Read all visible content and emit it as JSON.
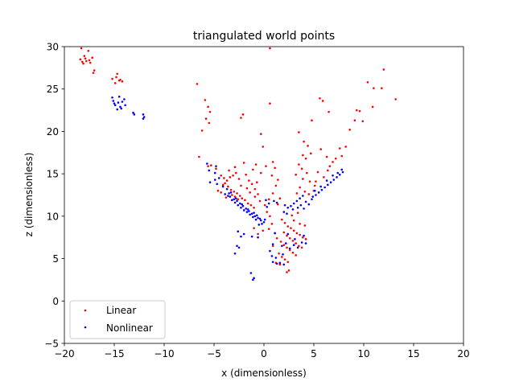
{
  "chart_data": {
    "type": "scatter",
    "title": "triangulated world points",
    "xlabel": "x (dimensionless)",
    "ylabel": "z (dimensionless)",
    "xlim": [
      -20,
      20
    ],
    "ylim": [
      -5,
      30
    ],
    "xticks": [
      -20,
      -15,
      -10,
      -5,
      0,
      5,
      10,
      15,
      20
    ],
    "yticks": [
      -5,
      0,
      5,
      10,
      15,
      20,
      25,
      30
    ],
    "xtick_labels": [
      "−20",
      "−15",
      "−10",
      "−5",
      "0",
      "5",
      "10",
      "15",
      "20"
    ],
    "ytick_labels": [
      "−5",
      "0",
      "5",
      "10",
      "15",
      "20",
      "25",
      "30"
    ],
    "grid": false,
    "legend_position": "lower-left",
    "series": [
      {
        "name": "Linear",
        "color": "#ff0000",
        "points": [
          [
            -18.3,
            29.8
          ],
          [
            -17.6,
            29.5
          ],
          [
            -18.0,
            28.9
          ],
          [
            -17.2,
            28.7
          ],
          [
            -18.4,
            28.5
          ],
          [
            -17.8,
            28.3
          ],
          [
            -18.1,
            28.0
          ],
          [
            -17.4,
            28.1
          ],
          [
            -17.9,
            28.6
          ],
          [
            -17.0,
            27.2
          ],
          [
            -17.1,
            26.9
          ],
          [
            -18.2,
            28.2
          ],
          [
            -17.5,
            28.4
          ],
          [
            -14.7,
            26.8
          ],
          [
            -14.8,
            26.4
          ],
          [
            -14.5,
            26.0
          ],
          [
            -14.2,
            25.9
          ],
          [
            -14.9,
            25.7
          ],
          [
            -15.2,
            26.2
          ],
          [
            -14.4,
            26.1
          ],
          [
            -6.7,
            25.6
          ],
          [
            -5.9,
            23.7
          ],
          [
            -5.6,
            22.9
          ],
          [
            -5.4,
            22.3
          ],
          [
            -5.8,
            21.5
          ],
          [
            -5.5,
            21.0
          ],
          [
            -6.2,
            20.1
          ],
          [
            -6.5,
            17.0
          ],
          [
            -2.3,
            21.6
          ],
          [
            -2.1,
            22.0
          ],
          [
            0.6,
            29.8
          ],
          [
            0.6,
            23.3
          ],
          [
            -0.3,
            19.7
          ],
          [
            -0.1,
            18.2
          ],
          [
            -5.3,
            16.0
          ],
          [
            -5.6,
            15.9
          ],
          [
            -4.8,
            15.6
          ],
          [
            -4.3,
            14.8
          ],
          [
            -4.0,
            14.5
          ],
          [
            -3.7,
            14.2
          ],
          [
            -3.4,
            14.6
          ],
          [
            -3.1,
            14.8
          ],
          [
            -2.8,
            15.1
          ],
          [
            -2.5,
            14.4
          ],
          [
            -3.9,
            13.9
          ],
          [
            -4.1,
            13.7
          ],
          [
            -3.6,
            13.5
          ],
          [
            -3.3,
            13.1
          ],
          [
            -3.0,
            12.9
          ],
          [
            -2.7,
            12.7
          ],
          [
            -2.4,
            12.4
          ],
          [
            -2.2,
            12.1
          ],
          [
            -1.9,
            11.9
          ],
          [
            -1.6,
            11.5
          ],
          [
            -1.3,
            11.3
          ],
          [
            -1.0,
            11.0
          ],
          [
            -2.9,
            12.3
          ],
          [
            -2.6,
            12.0
          ],
          [
            -3.2,
            12.5
          ],
          [
            -1.8,
            14.9
          ],
          [
            -1.5,
            14.2
          ],
          [
            -1.2,
            13.8
          ],
          [
            -0.9,
            13.2
          ],
          [
            -0.6,
            12.6
          ],
          [
            -0.3,
            15.1
          ],
          [
            0.2,
            15.9
          ],
          [
            -0.8,
            16.1
          ],
          [
            -1.1,
            15.5
          ],
          [
            -2.0,
            16.3
          ],
          [
            -2.9,
            15.8
          ],
          [
            -4.6,
            13.0
          ],
          [
            -4.3,
            12.8
          ],
          [
            -3.8,
            12.2
          ],
          [
            -1.4,
            12.8
          ],
          [
            -0.9,
            12.3
          ],
          [
            -0.4,
            11.8
          ],
          [
            0.1,
            11.3
          ],
          [
            0.5,
            12.0
          ],
          [
            -2.3,
            13.6
          ],
          [
            -1.7,
            13.3
          ],
          [
            -3.5,
            15.4
          ],
          [
            -0.7,
            14.0
          ],
          [
            0.9,
            16.4
          ],
          [
            1.1,
            15.7
          ],
          [
            0.8,
            14.8
          ],
          [
            1.4,
            14.3
          ],
          [
            1.2,
            13.6
          ],
          [
            0.9,
            12.7
          ],
          [
            1.6,
            12.1
          ],
          [
            1.4,
            11.4
          ],
          [
            3.5,
            19.9
          ],
          [
            4.0,
            18.8
          ],
          [
            4.4,
            18.3
          ],
          [
            3.9,
            17.2
          ],
          [
            4.7,
            17.4
          ],
          [
            4.2,
            16.8
          ],
          [
            3.5,
            16.1
          ],
          [
            3.8,
            15.6
          ],
          [
            4.3,
            15.1
          ],
          [
            3.2,
            14.9
          ],
          [
            3.9,
            14.4
          ],
          [
            4.6,
            14.1
          ],
          [
            5.1,
            13.6
          ],
          [
            3.6,
            13.4
          ],
          [
            4.1,
            12.9
          ],
          [
            4.5,
            12.6
          ],
          [
            5.0,
            13.0
          ],
          [
            3.3,
            12.7
          ],
          [
            4.8,
            21.3
          ],
          [
            5.6,
            23.9
          ],
          [
            5.9,
            23.6
          ],
          [
            6.5,
            22.3
          ],
          [
            5.7,
            17.9
          ],
          [
            6.3,
            17.0
          ],
          [
            6.9,
            16.4
          ],
          [
            7.2,
            16.8
          ],
          [
            6.6,
            15.9
          ],
          [
            7.6,
            18.0
          ],
          [
            7.8,
            17.1
          ],
          [
            8.2,
            18.2
          ],
          [
            8.6,
            20.2
          ],
          [
            9.1,
            21.3
          ],
          [
            9.3,
            22.5
          ],
          [
            9.6,
            22.4
          ],
          [
            9.9,
            21.2
          ],
          [
            10.4,
            25.8
          ],
          [
            10.9,
            22.9
          ],
          [
            11.0,
            25.1
          ],
          [
            12.0,
            27.3
          ],
          [
            11.8,
            25.1
          ],
          [
            13.2,
            23.8
          ],
          [
            5.4,
            15.2
          ],
          [
            6.0,
            14.6
          ],
          [
            5.2,
            14.1
          ],
          [
            6.4,
            15.4
          ],
          [
            1.8,
            9.6
          ],
          [
            2.1,
            9.2
          ],
          [
            2.4,
            8.8
          ],
          [
            2.7,
            8.6
          ],
          [
            3.0,
            8.3
          ],
          [
            3.3,
            8.0
          ],
          [
            3.6,
            7.8
          ],
          [
            3.9,
            7.5
          ],
          [
            4.2,
            7.3
          ],
          [
            2.0,
            8.1
          ],
          [
            2.3,
            7.7
          ],
          [
            2.6,
            7.4
          ],
          [
            2.9,
            7.1
          ],
          [
            3.2,
            6.8
          ],
          [
            3.5,
            6.5
          ],
          [
            3.8,
            6.3
          ],
          [
            1.7,
            7.0
          ],
          [
            2.0,
            6.6
          ],
          [
            2.3,
            6.3
          ],
          [
            2.6,
            6.0
          ],
          [
            2.9,
            5.7
          ],
          [
            3.2,
            5.4
          ],
          [
            1.5,
            5.6
          ],
          [
            1.8,
            5.2
          ],
          [
            2.1,
            4.9
          ],
          [
            2.4,
            4.6
          ],
          [
            1.2,
            4.5
          ],
          [
            1.6,
            4.3
          ],
          [
            2.5,
            3.6
          ],
          [
            2.3,
            3.4
          ],
          [
            0.5,
            8.5
          ],
          [
            0.8,
            9.1
          ],
          [
            1.1,
            8.0
          ],
          [
            0.3,
            10.5
          ],
          [
            0.6,
            10.0
          ],
          [
            3.0,
            9.5
          ],
          [
            3.6,
            9.1
          ],
          [
            4.1,
            8.9
          ],
          [
            0.9,
            6.5
          ],
          [
            1.3,
            7.4
          ],
          [
            2.8,
            10.1
          ],
          [
            3.4,
            10.4
          ],
          [
            -0.1,
            8.3
          ],
          [
            -1.0,
            8.6
          ],
          [
            -0.6,
            7.9
          ]
        ]
      },
      {
        "name": "Nonlinear",
        "color": "#0000ff",
        "points": [
          [
            -15.2,
            24.0
          ],
          [
            -15.1,
            23.6
          ],
          [
            -14.6,
            23.4
          ],
          [
            -14.9,
            23.1
          ],
          [
            -14.4,
            22.9
          ],
          [
            -14.7,
            22.6
          ],
          [
            -14.2,
            23.5
          ],
          [
            -14.0,
            23.8
          ],
          [
            -14.5,
            24.1
          ],
          [
            -13.9,
            23.1
          ],
          [
            -15.0,
            23.3
          ],
          [
            -14.3,
            22.7
          ],
          [
            -13.1,
            22.2
          ],
          [
            -13.0,
            22.0
          ],
          [
            -12.1,
            22.0
          ],
          [
            -12.0,
            21.7
          ],
          [
            -12.1,
            21.5
          ],
          [
            -5.5,
            15.4
          ],
          [
            -4.9,
            15.1
          ],
          [
            -4.5,
            14.5
          ],
          [
            -4.9,
            14.3
          ],
          [
            -5.4,
            14.0
          ],
          [
            -4.7,
            13.8
          ],
          [
            -4.1,
            13.5
          ],
          [
            -3.7,
            13.2
          ],
          [
            -3.3,
            12.8
          ],
          [
            -3.9,
            12.6
          ],
          [
            -3.4,
            12.3
          ],
          [
            -3.0,
            12.0
          ],
          [
            -2.7,
            11.8
          ],
          [
            -2.4,
            11.5
          ],
          [
            -2.1,
            11.2
          ],
          [
            -1.8,
            10.9
          ],
          [
            -1.5,
            10.6
          ],
          [
            -1.2,
            10.3
          ],
          [
            -0.9,
            10.0
          ],
          [
            -0.6,
            9.8
          ],
          [
            -0.3,
            9.5
          ],
          [
            0.0,
            9.3
          ],
          [
            -0.5,
            9.0
          ],
          [
            -0.8,
            9.6
          ],
          [
            -1.1,
            9.9
          ],
          [
            -1.4,
            10.2
          ],
          [
            -2.0,
            10.7
          ],
          [
            -2.6,
            11.3
          ],
          [
            -3.2,
            11.9
          ],
          [
            -3.6,
            12.4
          ],
          [
            -2.9,
            11.6
          ],
          [
            -2.3,
            11.0
          ],
          [
            -1.7,
            10.5
          ],
          [
            -0.2,
            9.1
          ],
          [
            0.1,
            9.6
          ],
          [
            -0.4,
            9.7
          ],
          [
            -1.0,
            10.4
          ],
          [
            -1.6,
            10.8
          ],
          [
            -2.2,
            11.4
          ],
          [
            -2.8,
            12.1
          ],
          [
            -3.5,
            12.7
          ],
          [
            -0.7,
            10.1
          ],
          [
            0.2,
            11.9
          ],
          [
            0.5,
            11.5
          ],
          [
            0.3,
            11.1
          ],
          [
            1.0,
            11.8
          ],
          [
            1.3,
            11.6
          ],
          [
            2.1,
            11.3
          ],
          [
            2.4,
            11.0
          ],
          [
            2.7,
            11.2
          ],
          [
            3.0,
            11.5
          ],
          [
            3.3,
            11.8
          ],
          [
            3.6,
            12.1
          ],
          [
            3.9,
            12.4
          ],
          [
            4.2,
            11.7
          ],
          [
            4.5,
            11.4
          ],
          [
            3.4,
            11.0
          ],
          [
            2.9,
            10.8
          ],
          [
            3.7,
            11.3
          ],
          [
            2.0,
            10.5
          ],
          [
            2.3,
            10.3
          ],
          [
            4.0,
            10.9
          ],
          [
            4.8,
            12.0
          ],
          [
            5.2,
            12.5
          ],
          [
            5.5,
            12.8
          ],
          [
            5.8,
            13.1
          ],
          [
            6.1,
            13.4
          ],
          [
            6.4,
            13.7
          ],
          [
            6.7,
            14.0
          ],
          [
            7.0,
            14.3
          ],
          [
            7.3,
            14.6
          ],
          [
            7.6,
            14.9
          ],
          [
            7.9,
            15.2
          ],
          [
            7.8,
            15.5
          ],
          [
            6.3,
            14.2
          ],
          [
            5.7,
            13.5
          ],
          [
            5.1,
            13.0
          ],
          [
            4.9,
            12.3
          ],
          [
            6.9,
            14.8
          ],
          [
            7.4,
            15.1
          ],
          [
            -5.7,
            16.2
          ],
          [
            -4.8,
            15.9
          ],
          [
            -2.6,
            8.2
          ],
          [
            -2.3,
            7.6
          ],
          [
            -2.0,
            7.9
          ],
          [
            -2.5,
            6.3
          ],
          [
            -2.7,
            6.5
          ],
          [
            -1.2,
            7.6
          ],
          [
            -0.6,
            7.5
          ],
          [
            -2.9,
            5.6
          ],
          [
            -1.3,
            3.3
          ],
          [
            -1.1,
            2.5
          ],
          [
            -1.0,
            2.7
          ],
          [
            0.6,
            5.9
          ],
          [
            0.8,
            5.3
          ],
          [
            0.9,
            4.6
          ],
          [
            1.3,
            4.4
          ],
          [
            1.6,
            4.5
          ],
          [
            2.0,
            4.3
          ],
          [
            1.8,
            6.5
          ],
          [
            2.2,
            6.8
          ],
          [
            2.6,
            6.2
          ],
          [
            3.0,
            6.6
          ],
          [
            3.4,
            6.3
          ],
          [
            3.8,
            6.9
          ],
          [
            4.2,
            6.8
          ],
          [
            4.0,
            7.7
          ],
          [
            3.1,
            7.3
          ],
          [
            2.4,
            7.9
          ],
          [
            1.2,
            5.1
          ],
          [
            1.9,
            5.5
          ],
          [
            0.9,
            6.7
          ],
          [
            1.1,
            8.0
          ]
        ]
      }
    ]
  }
}
